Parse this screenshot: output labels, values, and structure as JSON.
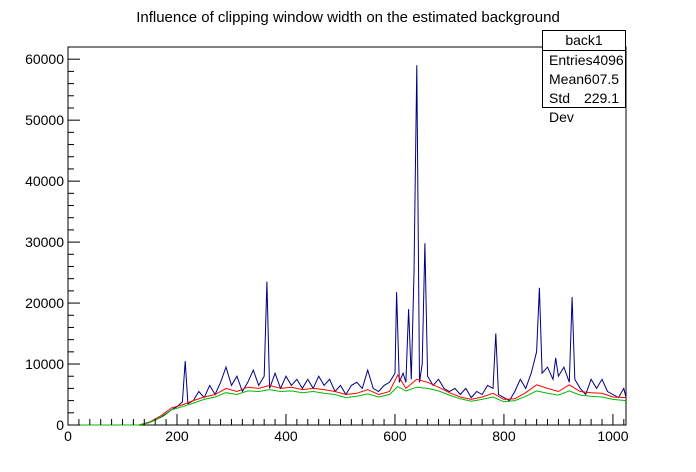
{
  "chart_data": {
    "type": "line",
    "title": "Influence of clipping window width on the estimated background",
    "xlabel": "",
    "ylabel": "",
    "xlim": [
      0,
      1024
    ],
    "ylim": [
      0,
      62000
    ],
    "x_ticks": [
      0,
      200,
      400,
      600,
      800,
      1000
    ],
    "y_ticks": [
      0,
      10000,
      20000,
      30000,
      40000,
      50000,
      60000
    ],
    "grid": false,
    "legend": "none",
    "stats": {
      "name": "back1",
      "rows": [
        {
          "label": "Entries",
          "value": "4096"
        },
        {
          "label": "Mean",
          "value": "607.5"
        },
        {
          "label": "Std Dev",
          "value": "229.1"
        }
      ]
    },
    "series": [
      {
        "color": "#00007f",
        "values": [
          [
            0,
            0
          ],
          [
            130,
            0
          ],
          [
            145,
            300
          ],
          [
            160,
            800
          ],
          [
            175,
            1500
          ],
          [
            190,
            2500
          ],
          [
            200,
            3000
          ],
          [
            210,
            3800
          ],
          [
            215,
            10500
          ],
          [
            220,
            3500
          ],
          [
            230,
            4000
          ],
          [
            240,
            5500
          ],
          [
            250,
            4500
          ],
          [
            260,
            6500
          ],
          [
            270,
            5000
          ],
          [
            280,
            7000
          ],
          [
            290,
            9500
          ],
          [
            300,
            6500
          ],
          [
            310,
            8000
          ],
          [
            320,
            5500
          ],
          [
            330,
            7000
          ],
          [
            340,
            9000
          ],
          [
            350,
            6500
          ],
          [
            360,
            8000
          ],
          [
            365,
            23500
          ],
          [
            370,
            6000
          ],
          [
            380,
            8500
          ],
          [
            390,
            6000
          ],
          [
            400,
            8000
          ],
          [
            410,
            6500
          ],
          [
            420,
            7500
          ],
          [
            430,
            6000
          ],
          [
            440,
            7500
          ],
          [
            450,
            6000
          ],
          [
            460,
            8000
          ],
          [
            470,
            6500
          ],
          [
            480,
            7500
          ],
          [
            490,
            5500
          ],
          [
            500,
            6500
          ],
          [
            510,
            5000
          ],
          [
            520,
            6500
          ],
          [
            530,
            7000
          ],
          [
            540,
            6000
          ],
          [
            550,
            9000
          ],
          [
            560,
            6000
          ],
          [
            570,
            5500
          ],
          [
            580,
            6500
          ],
          [
            590,
            7000
          ],
          [
            600,
            8500
          ],
          [
            603,
            21800
          ],
          [
            608,
            7000
          ],
          [
            615,
            8500
          ],
          [
            620,
            7000
          ],
          [
            625,
            19000
          ],
          [
            630,
            7500
          ],
          [
            635,
            25000
          ],
          [
            640,
            59000
          ],
          [
            645,
            7000
          ],
          [
            650,
            10000
          ],
          [
            655,
            29800
          ],
          [
            660,
            8000
          ],
          [
            670,
            6500
          ],
          [
            680,
            7500
          ],
          [
            690,
            6000
          ],
          [
            700,
            5500
          ],
          [
            710,
            6000
          ],
          [
            720,
            5000
          ],
          [
            730,
            6000
          ],
          [
            740,
            4500
          ],
          [
            750,
            5500
          ],
          [
            760,
            5000
          ],
          [
            770,
            6500
          ],
          [
            780,
            6000
          ],
          [
            785,
            15000
          ],
          [
            790,
            5000
          ],
          [
            800,
            4500
          ],
          [
            810,
            4000
          ],
          [
            820,
            5500
          ],
          [
            830,
            7500
          ],
          [
            840,
            6000
          ],
          [
            850,
            8500
          ],
          [
            860,
            12000
          ],
          [
            865,
            22500
          ],
          [
            870,
            8500
          ],
          [
            880,
            9500
          ],
          [
            890,
            7500
          ],
          [
            895,
            11000
          ],
          [
            900,
            8000
          ],
          [
            910,
            9500
          ],
          [
            920,
            7000
          ],
          [
            925,
            21000
          ],
          [
            930,
            7500
          ],
          [
            940,
            6000
          ],
          [
            950,
            5000
          ],
          [
            960,
            7500
          ],
          [
            970,
            6000
          ],
          [
            980,
            7500
          ],
          [
            990,
            5500
          ],
          [
            1000,
            5000
          ],
          [
            1010,
            4500
          ],
          [
            1020,
            6000
          ],
          [
            1024,
            4500
          ]
        ]
      },
      {
        "color": "#ff0000",
        "values": [
          [
            0,
            0
          ],
          [
            130,
            0
          ],
          [
            150,
            500
          ],
          [
            170,
            1500
          ],
          [
            190,
            2800
          ],
          [
            210,
            3300
          ],
          [
            230,
            4000
          ],
          [
            250,
            4600
          ],
          [
            270,
            5000
          ],
          [
            290,
            6000
          ],
          [
            310,
            5500
          ],
          [
            330,
            6200
          ],
          [
            350,
            6000
          ],
          [
            370,
            6500
          ],
          [
            390,
            6000
          ],
          [
            410,
            6200
          ],
          [
            430,
            5800
          ],
          [
            450,
            6000
          ],
          [
            470,
            5800
          ],
          [
            490,
            5500
          ],
          [
            510,
            5000
          ],
          [
            530,
            5200
          ],
          [
            550,
            5800
          ],
          [
            570,
            5000
          ],
          [
            590,
            5500
          ],
          [
            605,
            8200
          ],
          [
            620,
            6000
          ],
          [
            640,
            7500
          ],
          [
            660,
            7000
          ],
          [
            680,
            6200
          ],
          [
            700,
            5300
          ],
          [
            720,
            4600
          ],
          [
            740,
            4200
          ],
          [
            760,
            4600
          ],
          [
            780,
            5200
          ],
          [
            800,
            4200
          ],
          [
            820,
            4300
          ],
          [
            840,
            5300
          ],
          [
            860,
            6600
          ],
          [
            880,
            6000
          ],
          [
            900,
            5500
          ],
          [
            920,
            6600
          ],
          [
            940,
            5500
          ],
          [
            960,
            5300
          ],
          [
            980,
            5200
          ],
          [
            1000,
            4600
          ],
          [
            1024,
            4500
          ]
        ]
      },
      {
        "color": "#00bb00",
        "values": [
          [
            0,
            0
          ],
          [
            130,
            0
          ],
          [
            150,
            400
          ],
          [
            170,
            1300
          ],
          [
            190,
            2500
          ],
          [
            210,
            3000
          ],
          [
            230,
            3600
          ],
          [
            250,
            4200
          ],
          [
            270,
            4600
          ],
          [
            290,
            5300
          ],
          [
            310,
            5000
          ],
          [
            330,
            5600
          ],
          [
            350,
            5500
          ],
          [
            370,
            5800
          ],
          [
            390,
            5500
          ],
          [
            410,
            5600
          ],
          [
            430,
            5300
          ],
          [
            450,
            5500
          ],
          [
            470,
            5200
          ],
          [
            490,
            5000
          ],
          [
            510,
            4500
          ],
          [
            530,
            4700
          ],
          [
            550,
            5100
          ],
          [
            570,
            4600
          ],
          [
            590,
            5000
          ],
          [
            605,
            6300
          ],
          [
            620,
            5600
          ],
          [
            640,
            6200
          ],
          [
            660,
            6000
          ],
          [
            680,
            5600
          ],
          [
            700,
            4900
          ],
          [
            720,
            4300
          ],
          [
            740,
            3900
          ],
          [
            760,
            4200
          ],
          [
            780,
            4600
          ],
          [
            800,
            3800
          ],
          [
            820,
            4000
          ],
          [
            840,
            4700
          ],
          [
            860,
            5600
          ],
          [
            880,
            5200
          ],
          [
            900,
            4900
          ],
          [
            920,
            5600
          ],
          [
            940,
            4900
          ],
          [
            960,
            4700
          ],
          [
            980,
            4600
          ],
          [
            1000,
            4200
          ],
          [
            1024,
            4000
          ]
        ]
      }
    ]
  }
}
